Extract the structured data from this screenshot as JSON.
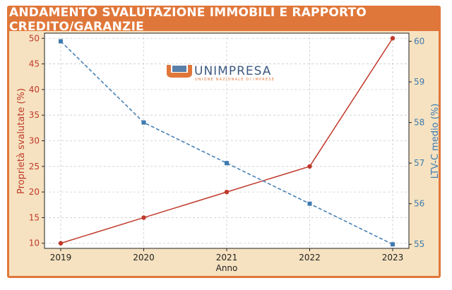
{
  "header": {
    "title": "ANDAMENTO SVALUTAZIONE IMMOBILI E RAPPORTO CREDITO/GARANZIE"
  },
  "logo": {
    "name": "UNIMPRESA",
    "tagline": "UNIONE NAZIONALE DI IMPRESE"
  },
  "colors": {
    "frame": "#e0773a",
    "panel": "#f6e2c0",
    "left_series": "#c0392b",
    "right_series": "#3d7ab0"
  },
  "chart_data": {
    "type": "line",
    "x": [
      "2019",
      "2020",
      "2021",
      "2022",
      "2023"
    ],
    "xlabel": "Anno",
    "ylabel_left": "Proprietà svalutate (%)",
    "ylabel_right": "LTV-C medio (%)",
    "ylim_left": [
      9,
      51
    ],
    "ylim_right": [
      54.9,
      60.2
    ],
    "yticks_left": [
      "10",
      "15",
      "20",
      "25",
      "30",
      "35",
      "40",
      "45",
      "50"
    ],
    "yticks_right": [
      "55",
      "56",
      "57",
      "58",
      "59",
      "60"
    ],
    "grid": true,
    "series": [
      {
        "axis": "left",
        "style": "solid",
        "marker": "circle",
        "values": [
          10,
          15,
          20,
          25,
          50
        ]
      },
      {
        "axis": "right",
        "style": "dashed",
        "marker": "square",
        "values": [
          60,
          58,
          57,
          56,
          55
        ]
      }
    ]
  }
}
